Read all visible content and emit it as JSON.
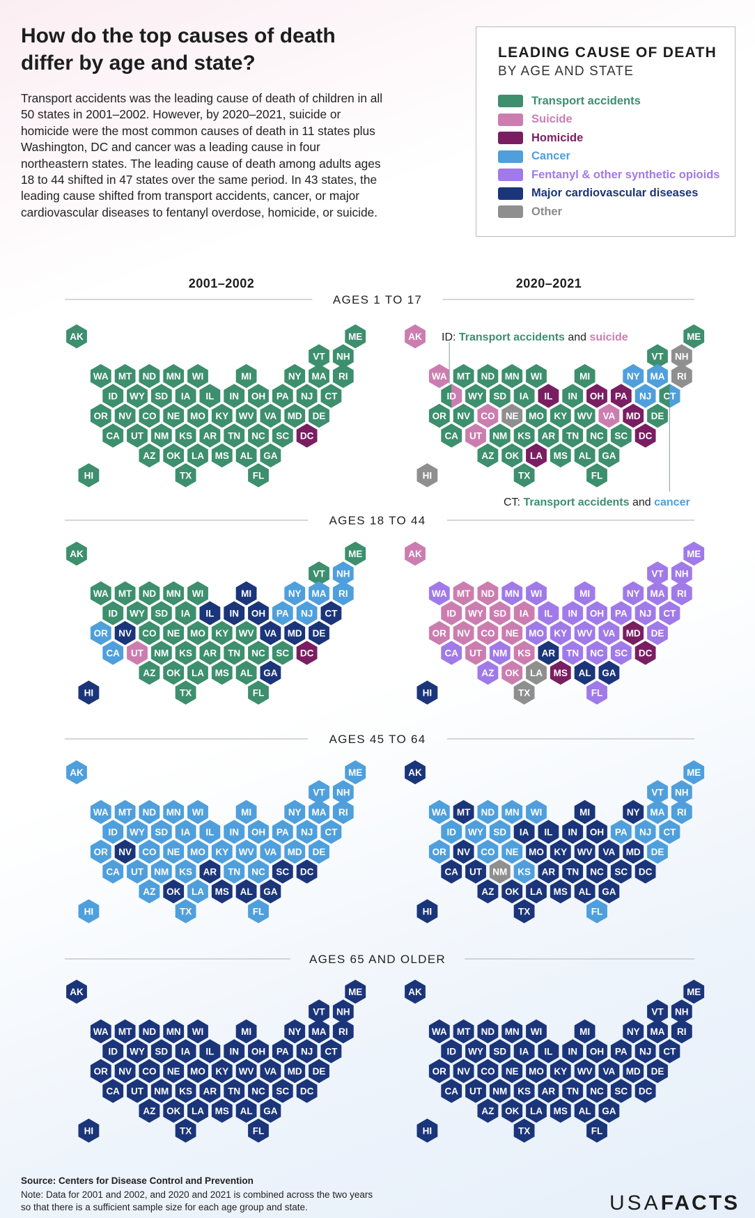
{
  "title_line1": "How do the top causes of death",
  "title_line2": "differ by age and state?",
  "intro": "Transport accidents was the leading cause of death  of children in all 50 states in 2001–2002. However, by 2020–2021, suicide or homicide were the most common causes of death in 11 states plus Washington, DC and cancer was a leading cause in four northeastern states. The leading cause of death among adults ages 18 to 44 shifted in 47 states over the same period. In 43 states, the leading cause shifted from transport accidents, cancer, or major cardiovascular diseases to fentanyl overdose, homicide, or suicide.",
  "legend": {
    "title1": "LEADING CAUSE OF DEATH",
    "title2": "BY AGE AND STATE",
    "items": [
      {
        "key": "T",
        "label": "Transport accidents",
        "color": "#3d8f6e"
      },
      {
        "key": "S",
        "label": "Suicide",
        "color": "#cc7db0"
      },
      {
        "key": "H",
        "label": "Homicide",
        "color": "#7a1e62"
      },
      {
        "key": "C",
        "label": "Cancer",
        "color": "#4f9fdc"
      },
      {
        "key": "F",
        "label": "Fentanyl & other synthetic opioids",
        "color": "#a07ae8"
      },
      {
        "key": "M",
        "label": "Major cardiovascular diseases",
        "color": "#1b357a"
      },
      {
        "key": "O",
        "label": "Other",
        "color": "#8f8f8f"
      }
    ]
  },
  "chart_data": {
    "type": "hex tile map",
    "columns": [
      "2001–2002",
      "2020–2021"
    ],
    "states": [
      "AK",
      "ME",
      "VT",
      "NH",
      "WA",
      "MT",
      "ND",
      "MN",
      "WI",
      "MI",
      "NY",
      "MA",
      "RI",
      "ID",
      "WY",
      "SD",
      "IA",
      "IL",
      "IN",
      "OH",
      "PA",
      "NJ",
      "CT",
      "OR",
      "NV",
      "CO",
      "NE",
      "MO",
      "KY",
      "WV",
      "VA",
      "MD",
      "DE",
      "CA",
      "UT",
      "NM",
      "KS",
      "AR",
      "TN",
      "NC",
      "SC",
      "DC",
      "AZ",
      "OK",
      "LA",
      "MS",
      "AL",
      "GA",
      "HI",
      "TX",
      "FL"
    ],
    "groups": [
      {
        "label": "AGES 1 TO 17",
        "2001–2002": {
          "default": "T",
          "overrides": {
            "DC": "H"
          }
        },
        "2020–2021": {
          "default": "T",
          "overrides": {
            "AK": "S",
            "NH": "O",
            "WA": "S",
            "NY": "C",
            "MA": "C",
            "RI": "O",
            "ID": "T/S",
            "IL": "H",
            "OH": "H",
            "PA": "H",
            "NJ": "C",
            "CT": "T/C",
            "CO": "S",
            "NE": "O",
            "VA": "S",
            "MD": "H",
            "UT": "S",
            "DC": "H",
            "LA": "H",
            "HI": "O"
          }
        }
      },
      {
        "label": "AGES 18 TO 44",
        "2001–2002": {
          "default": "T",
          "overrides": {
            "NH": "C",
            "MI": "M",
            "NY": "C",
            "MA": "C",
            "RI": "C",
            "IL": "M",
            "IN": "M",
            "OH": "M",
            "PA": "C",
            "NJ": "C",
            "CT": "M",
            "OR": "C",
            "NV": "M",
            "VA": "M",
            "MD": "M",
            "DE": "M",
            "CA": "C",
            "UT": "S",
            "DC": "H",
            "GA": "M",
            "HI": "M"
          }
        },
        "2020–2021": {
          "default": "F",
          "overrides": {
            "AK": "S",
            "MT": "S",
            "ND": "S",
            "ID": "S",
            "WY": "S",
            "SD": "S",
            "IA": "S",
            "OR": "S",
            "NV": "S",
            "CO": "S",
            "NE": "S",
            "UT": "S",
            "KS": "S",
            "OK": "S",
            "AR": "M",
            "MD": "H",
            "DC": "H",
            "LA": "O",
            "MS": "H",
            "AL": "M",
            "GA": "M",
            "HI": "M",
            "TX": "O"
          }
        }
      },
      {
        "label": "AGES 45 TO 64",
        "2001–2002": {
          "default": "C",
          "overrides": {
            "NV": "M",
            "AR": "M",
            "SC": "M",
            "DC": "M",
            "OK": "M",
            "MS": "M",
            "AL": "M",
            "GA": "M"
          }
        },
        "2020–2021": {
          "default": "M",
          "overrides": {
            "ME": "C",
            "VT": "C",
            "NH": "C",
            "WA": "C",
            "ND": "C",
            "MN": "C",
            "WI": "C",
            "MA": "C",
            "RI": "C",
            "ID": "C",
            "WY": "C",
            "SD": "C",
            "PA": "C",
            "NJ": "C",
            "CT": "C",
            "OR": "C",
            "CO": "C",
            "NE": "C",
            "DE": "C",
            "NM": "O",
            "KS": "C",
            "FL": "C"
          }
        }
      },
      {
        "label": "AGES 65 AND OLDER",
        "2001–2002": {
          "default": "M",
          "overrides": {}
        },
        "2020–2021": {
          "default": "M",
          "overrides": {}
        }
      }
    ],
    "annotations": {
      "id_prefix": "ID:",
      "id_a": "Transport accidents",
      "and": "and",
      "id_b": "suicide",
      "ct_prefix": "CT:",
      "ct_a": "Transport accidents",
      "ct_b": "cancer"
    }
  },
  "source": "Source: Centers for Disease Control and Prevention",
  "note": "Note: Data for 2001 and 2002, and 2020 and 2021 is combined across the two years so that there is a sufficient sample size for each age group and state.",
  "logo_a": "USA",
  "logo_b": "FACTS"
}
